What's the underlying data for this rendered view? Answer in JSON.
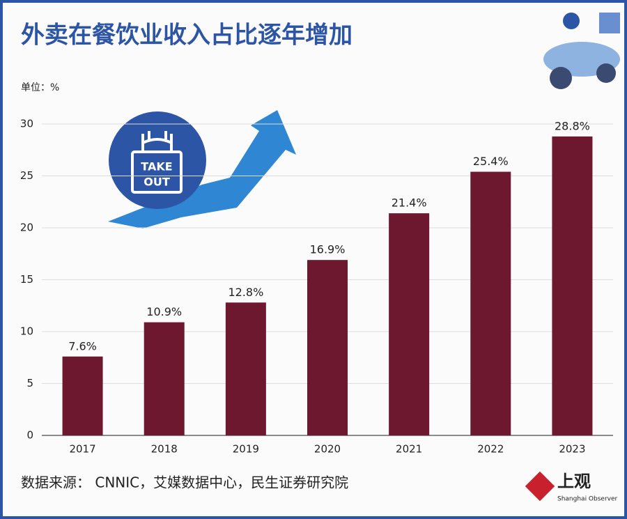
{
  "chart_data": {
    "type": "bar",
    "title": "外卖在餐饮业收入占比逐年增加",
    "unit_label": "单位：%",
    "source": "数据来源： CNNIC，艾媒数据中心，民生证券研究院",
    "badge": [
      "TAKE",
      "OUT"
    ],
    "logo": {
      "name": "上观",
      "subtitle": "Shanghai Observer"
    },
    "categories": [
      "2017",
      "2018",
      "2019",
      "2020",
      "2021",
      "2022",
      "2023"
    ],
    "values": [
      7.6,
      10.9,
      12.8,
      16.9,
      21.4,
      25.4,
      28.8
    ],
    "value_labels": [
      "7.6%",
      "10.9%",
      "12.8%",
      "16.9%",
      "21.4%",
      "25.4%",
      "28.8%"
    ],
    "color": "#6e1830",
    "ylim": [
      0,
      30
    ],
    "yticks": [
      0,
      5,
      10,
      15,
      20,
      25,
      30
    ],
    "grid": true
  }
}
